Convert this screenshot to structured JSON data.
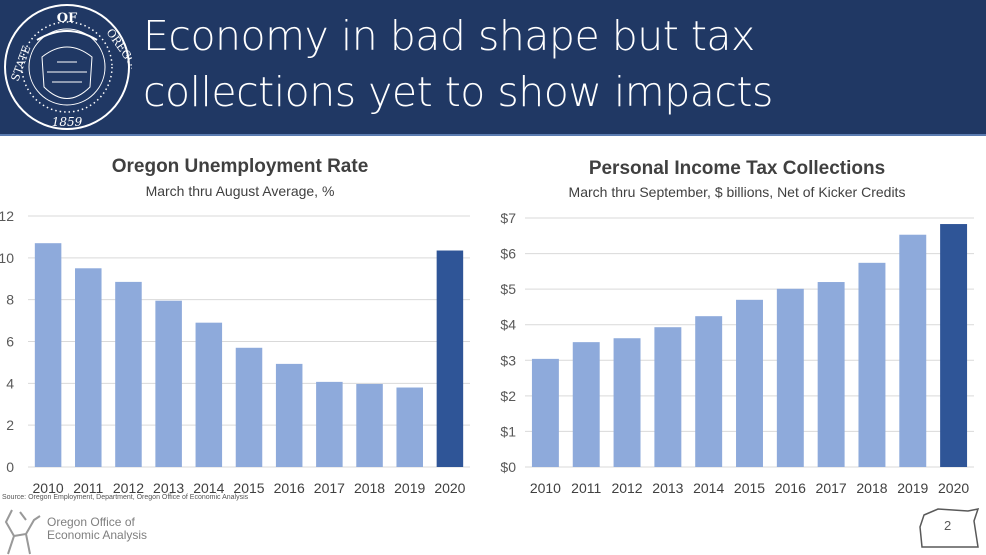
{
  "header": {
    "title_line1": "Economy in bad shape but tax",
    "title_line2": "collections yet to show impacts",
    "seal_text": "STATE OF OREGON 1859",
    "background": "#203864"
  },
  "chart_data": [
    {
      "type": "bar",
      "title": "Oregon Unemployment Rate",
      "subtitle": "March thru August Average, %",
      "categories": [
        "2010",
        "2011",
        "2012",
        "2013",
        "2014",
        "2015",
        "2016",
        "2017",
        "2018",
        "2019",
        "2020"
      ],
      "values": [
        10.7,
        9.5,
        8.85,
        7.95,
        6.9,
        5.7,
        4.93,
        4.07,
        3.97,
        3.8,
        10.35
      ],
      "ylim": [
        0,
        12
      ],
      "yticks": [
        0,
        2,
        4,
        6,
        8,
        10,
        12
      ],
      "ytick_labels": [
        "0",
        "2",
        "4",
        "6",
        "8",
        "10",
        "12"
      ],
      "grid": true,
      "colors": {
        "default": "#8eaadb",
        "highlight": "#2f5597"
      },
      "highlight_category": "2020"
    },
    {
      "type": "bar",
      "title": "Personal Income Tax Collections",
      "subtitle": "March thru September, $ billions, Net of Kicker Credits",
      "categories": [
        "2010",
        "2011",
        "2012",
        "2013",
        "2014",
        "2015",
        "2016",
        "2017",
        "2018",
        "2019",
        "2020"
      ],
      "values": [
        3.04,
        3.51,
        3.62,
        3.93,
        4.24,
        4.7,
        5.01,
        5.2,
        5.74,
        6.53,
        6.83
      ],
      "ylim": [
        0,
        7
      ],
      "yticks": [
        0,
        1,
        2,
        3,
        4,
        5,
        6,
        7
      ],
      "ytick_labels": [
        "$0",
        "$1",
        "$2",
        "$3",
        "$4",
        "$5",
        "$6",
        "$7"
      ],
      "grid": true,
      "colors": {
        "default": "#8eaadb",
        "highlight": "#2f5597"
      },
      "highlight_category": "2020"
    }
  ],
  "footer": {
    "source": "Source: Oregon Employment, Department, Oregon Office of Economic Analysis",
    "org_line1": "Oregon Office of",
    "org_line2": "Economic Analysis",
    "page_number": "2"
  }
}
